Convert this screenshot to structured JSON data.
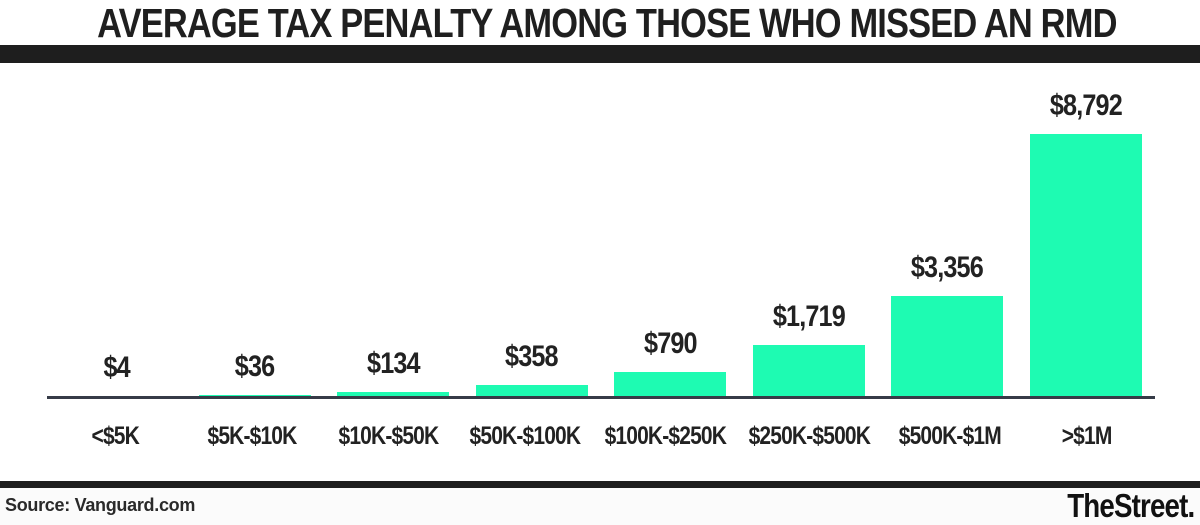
{
  "title": "AVERAGE TAX PENALTY AMONG THOSE WHO MISSED AN RMD",
  "footer": {
    "source_label": "Source: Vanguard.com",
    "brand": "TheStreet."
  },
  "colors": {
    "bar": "#1efbb2",
    "axis": "#363b47",
    "rule": "#1e1e1e",
    "text": "#222222"
  },
  "chart_data": {
    "type": "bar",
    "title": "AVERAGE TAX PENALTY AMONG THOSE WHO MISSED AN RMD",
    "categories": [
      "<$5K",
      "$5K-$10K",
      "$10K-$50K",
      "$50K-$100K",
      "$100K-$250K",
      "$250K-$500K",
      "$500K-$1M",
      ">$1M"
    ],
    "values": [
      4,
      36,
      134,
      358,
      790,
      1719,
      3356,
      8792
    ],
    "value_labels": [
      "$4",
      "$36",
      "$134",
      "$358",
      "$790",
      "$1,719",
      "$3,356",
      "$8,792"
    ],
    "xlabel": "",
    "ylabel": "",
    "ylim": [
      0,
      8792
    ],
    "grid": false,
    "legend": false,
    "bar_color": "#1efbb2",
    "value_label_position": "above-bar"
  }
}
